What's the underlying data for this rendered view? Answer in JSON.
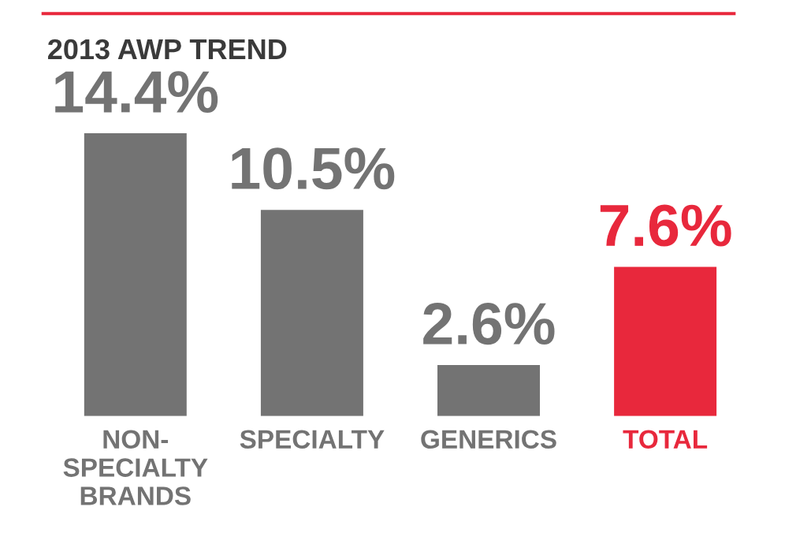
{
  "chart_data": {
    "type": "bar",
    "title": "2013 AWP TREND",
    "categories": [
      "NON-\nSPECIALTY\nBRANDS",
      "SPECIALTY",
      "GENERICS",
      "TOTAL"
    ],
    "values": [
      14.4,
      10.5,
      2.6,
      7.6
    ],
    "colors": [
      "#737373",
      "#737373",
      "#737373",
      "#e8283c"
    ],
    "value_labels": [
      "14.4%",
      "10.5%",
      "2.6%",
      "7.6%"
    ],
    "grid": false,
    "legend": false
  }
}
